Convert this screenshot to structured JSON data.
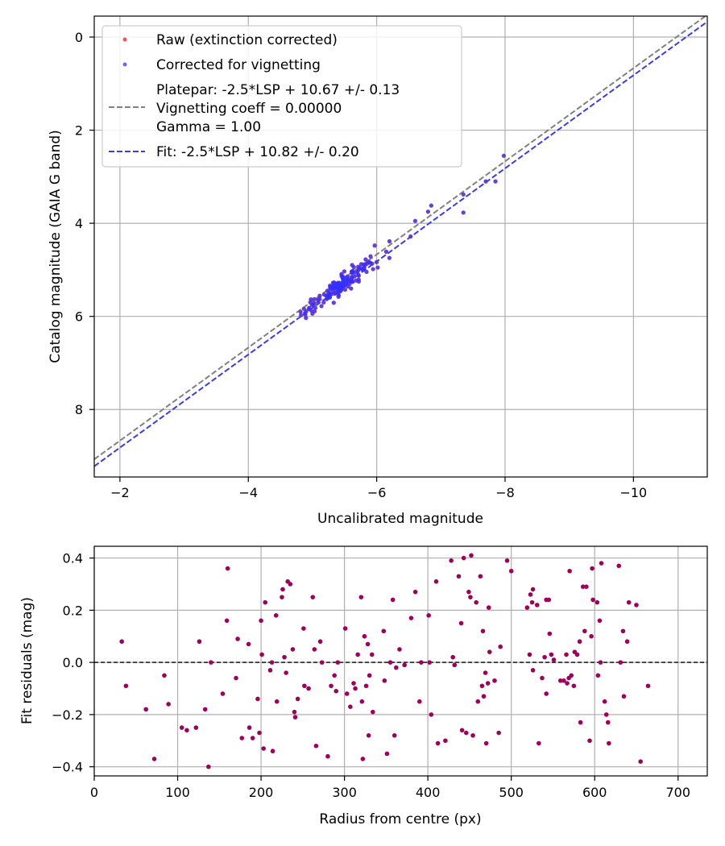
{
  "chart_data": [
    {
      "type": "scatter",
      "title": "",
      "xlabel": "Uncalibrated magnitude",
      "ylabel": "Catalog magnitude (GAIA G band)",
      "xlim": [
        -1.6,
        -11.15
      ],
      "ylim": [
        9.45,
        -0.45
      ],
      "x_inverted": true,
      "y_inverted": true,
      "grid": true,
      "legend_position": "upper-left",
      "xticks": [
        -2,
        -4,
        -6,
        -8,
        -10
      ],
      "xtick_labels": [
        "−2",
        "−4",
        "−6",
        "−8",
        "−10"
      ],
      "yticks": [
        0,
        2,
        4,
        6,
        8
      ],
      "ytick_labels": [
        "0",
        "2",
        "4",
        "6",
        "8"
      ],
      "legend": {
        "raw": "Raw (extinction corrected)",
        "corrected": "Corrected for vignetting",
        "platepar_line1": "Platepar: -2.5*LSP + 10.67 +/- 0.13",
        "platepar_line2": "Vignetting coeff = 0.00000",
        "platepar_line3": "Gamma = 1.00",
        "fit": "Fit: -2.5*LSP + 10.82 +/- 0.20"
      },
      "lines": [
        {
          "name": "Platepar",
          "slope": 1,
          "intercept": 10.67,
          "color": "#808080",
          "style": "dashed"
        },
        {
          "name": "Fit",
          "slope": 1,
          "intercept": 10.82,
          "color": "#3a3af0",
          "style": "dashed"
        }
      ],
      "series": [
        {
          "name": "Raw (extinction corrected)",
          "color": "#ff5050",
          "seed": 11,
          "n": 150
        },
        {
          "name": "Corrected for vignetting",
          "color": "#3030ff",
          "seed": 11,
          "n": 150
        }
      ],
      "scatter_extra": [
        {
          "x": -7.98,
          "y": 2.55
        },
        {
          "x": -7.35,
          "y": 3.38
        },
        {
          "x": -7.35,
          "y": 3.77
        },
        {
          "x": -7.7,
          "y": 3.1
        },
        {
          "x": -7.85,
          "y": 3.1
        },
        {
          "x": -6.85,
          "y": 3.62
        },
        {
          "x": -6.8,
          "y": 3.75
        },
        {
          "x": -6.6,
          "y": 3.95
        }
      ],
      "scatter_cluster": {
        "x_center": -5.45,
        "x_spread": 0.55,
        "intercept": 10.82,
        "scatter_sd": 0.2
      }
    },
    {
      "type": "scatter",
      "title": "",
      "xlabel": "Radius from centre (px)",
      "ylabel": "Fit residuals (mag)",
      "xlim": [
        0,
        735
      ],
      "ylim": [
        -0.435,
        0.445
      ],
      "grid": true,
      "xticks": [
        0,
        100,
        200,
        300,
        400,
        500,
        600,
        700
      ],
      "xtick_labels": [
        "0",
        "100",
        "200",
        "300",
        "400",
        "500",
        "600",
        "700"
      ],
      "yticks": [
        -0.4,
        -0.2,
        0.0,
        0.2,
        0.4
      ],
      "ytick_labels": [
        "−0.4",
        "−0.2",
        "0.0",
        "0.2",
        "0.4"
      ],
      "zero_line": 0,
      "point_color": "#a0005a",
      "points": [
        [
          33,
          0.08
        ],
        [
          38,
          -0.09
        ],
        [
          62,
          -0.18
        ],
        [
          72,
          -0.37
        ],
        [
          84,
          -0.05
        ],
        [
          89,
          -0.16
        ],
        [
          105,
          -0.25
        ],
        [
          111,
          -0.26
        ],
        [
          122,
          -0.25
        ],
        [
          126,
          0.08
        ],
        [
          133,
          -0.18
        ],
        [
          137,
          -0.4
        ],
        [
          140,
          0.0
        ],
        [
          154,
          -0.12
        ],
        [
          159,
          0.16
        ],
        [
          160,
          0.36
        ],
        [
          170,
          -0.06
        ],
        [
          172,
          0.09
        ],
        [
          177,
          -0.29
        ],
        [
          185,
          0.07
        ],
        [
          186,
          -0.25
        ],
        [
          190,
          -0.29
        ],
        [
          196,
          -0.14
        ],
        [
          198,
          -0.27
        ],
        [
          200,
          0.16
        ],
        [
          201,
          0.03
        ],
        [
          203,
          -0.33
        ],
        [
          205,
          0.23
        ],
        [
          211,
          -0.03
        ],
        [
          213,
          0.0
        ],
        [
          214,
          -0.34
        ],
        [
          218,
          0.18
        ],
        [
          219,
          -0.15
        ],
        [
          225,
          0.25
        ],
        [
          226,
          0.28
        ],
        [
          228,
          0.02
        ],
        [
          230,
          -0.04
        ],
        [
          232,
          0.31
        ],
        [
          235,
          0.3
        ],
        [
          238,
          0.05
        ],
        [
          240,
          -0.19
        ],
        [
          241,
          -0.21
        ],
        [
          244,
          -0.14
        ],
        [
          251,
          0.13
        ],
        [
          252,
          -0.09
        ],
        [
          257,
          -0.1
        ],
        [
          262,
          0.25
        ],
        [
          264,
          0.05
        ],
        [
          266,
          -0.32
        ],
        [
          271,
          0.08
        ],
        [
          273,
          0.0
        ],
        [
          280,
          -0.36
        ],
        [
          284,
          -0.09
        ],
        [
          288,
          -0.05
        ],
        [
          290,
          -0.11
        ],
        [
          292,
          0.0
        ],
        [
          301,
          0.13
        ],
        [
          303,
          -0.12
        ],
        [
          307,
          -0.17
        ],
        [
          311,
          -0.08
        ],
        [
          313,
          -0.1
        ],
        [
          316,
          0.03
        ],
        [
          320,
          0.25
        ],
        [
          321,
          -0.15
        ],
        [
          322,
          -0.37
        ],
        [
          324,
          0.1
        ],
        [
          326,
          -0.09
        ],
        [
          328,
          0.07
        ],
        [
          329,
          -0.28
        ],
        [
          330,
          -0.05
        ],
        [
          333,
          0.03
        ],
        [
          334,
          -0.19
        ],
        [
          347,
          0.12
        ],
        [
          348,
          -0.07
        ],
        [
          351,
          -0.35
        ],
        [
          355,
          0.0
        ],
        [
          358,
          0.24
        ],
        [
          360,
          -0.28
        ],
        [
          362,
          -0.02
        ],
        [
          366,
          0.05
        ],
        [
          372,
          -0.01
        ],
        [
          380,
          0.17
        ],
        [
          385,
          0.27
        ],
        [
          390,
          -0.15
        ],
        [
          392,
          0.0
        ],
        [
          401,
          0.18
        ],
        [
          402,
          0.0
        ],
        [
          404,
          -0.2
        ],
        [
          410,
          0.31
        ],
        [
          412,
          -0.31
        ],
        [
          421,
          -0.3
        ],
        [
          428,
          0.39
        ],
        [
          430,
          0.02
        ],
        [
          432,
          -0.01
        ],
        [
          437,
          0.33
        ],
        [
          440,
          0.15
        ],
        [
          441,
          -0.26
        ],
        [
          443,
          0.4
        ],
        [
          446,
          -0.27
        ],
        [
          449,
          0.27
        ],
        [
          451,
          0.25
        ],
        [
          452,
          0.41
        ],
        [
          454,
          -0.28
        ],
        [
          458,
          0.23
        ],
        [
          460,
          -0.15
        ],
        [
          463,
          0.33
        ],
        [
          465,
          -0.09
        ],
        [
          466,
          0.12
        ],
        [
          467,
          -0.13
        ],
        [
          469,
          -0.04
        ],
        [
          470,
          -0.31
        ],
        [
          472,
          -0.08
        ],
        [
          473,
          0.21
        ],
        [
          474,
          0.04
        ],
        [
          480,
          -0.07
        ],
        [
          485,
          -0.27
        ],
        [
          487,
          0.06
        ],
        [
          495,
          0.39
        ],
        [
          500,
          0.35
        ],
        [
          519,
          0.21
        ],
        [
          522,
          0.03
        ],
        [
          523,
          0.26
        ],
        [
          525,
          0.23
        ],
        [
          526,
          -0.03
        ],
        [
          526,
          0.28
        ],
        [
          531,
          0.22
        ],
        [
          533,
          -0.31
        ],
        [
          537,
          -0.06
        ],
        [
          540,
          0.02
        ],
        [
          542,
          -0.12
        ],
        [
          542,
          0.24
        ],
        [
          545,
          0.24
        ],
        [
          546,
          0.11
        ],
        [
          548,
          0.03
        ],
        [
          551,
          0.01
        ],
        [
          559,
          -0.07
        ],
        [
          563,
          -0.07
        ],
        [
          566,
          0.03
        ],
        [
          567,
          -0.08
        ],
        [
          569,
          -0.06
        ],
        [
          570,
          0.35
        ],
        [
          572,
          -0.05
        ],
        [
          575,
          -0.09
        ],
        [
          576,
          0.04
        ],
        [
          579,
          0.03
        ],
        [
          582,
          0.08
        ],
        [
          583,
          -0.23
        ],
        [
          586,
          0.29
        ],
        [
          588,
          0.12
        ],
        [
          590,
          0.29
        ],
        [
          594,
          -0.3
        ],
        [
          596,
          0.1
        ],
        [
          597,
          0.36
        ],
        [
          598,
          0.24
        ],
        [
          603,
          0.23
        ],
        [
          604,
          -0.05
        ],
        [
          606,
          0.16
        ],
        [
          607,
          0.0
        ],
        [
          608,
          0.38
        ],
        [
          612,
          -0.15
        ],
        [
          614,
          -0.2
        ],
        [
          616,
          -0.23
        ],
        [
          617,
          -0.31
        ],
        [
          629,
          0.37
        ],
        [
          631,
          0.0
        ],
        [
          634,
          0.12
        ],
        [
          635,
          -0.13
        ],
        [
          639,
          0.08
        ],
        [
          641,
          0.23
        ],
        [
          650,
          0.22
        ],
        [
          655,
          -0.38
        ],
        [
          664,
          -0.09
        ]
      ]
    }
  ]
}
